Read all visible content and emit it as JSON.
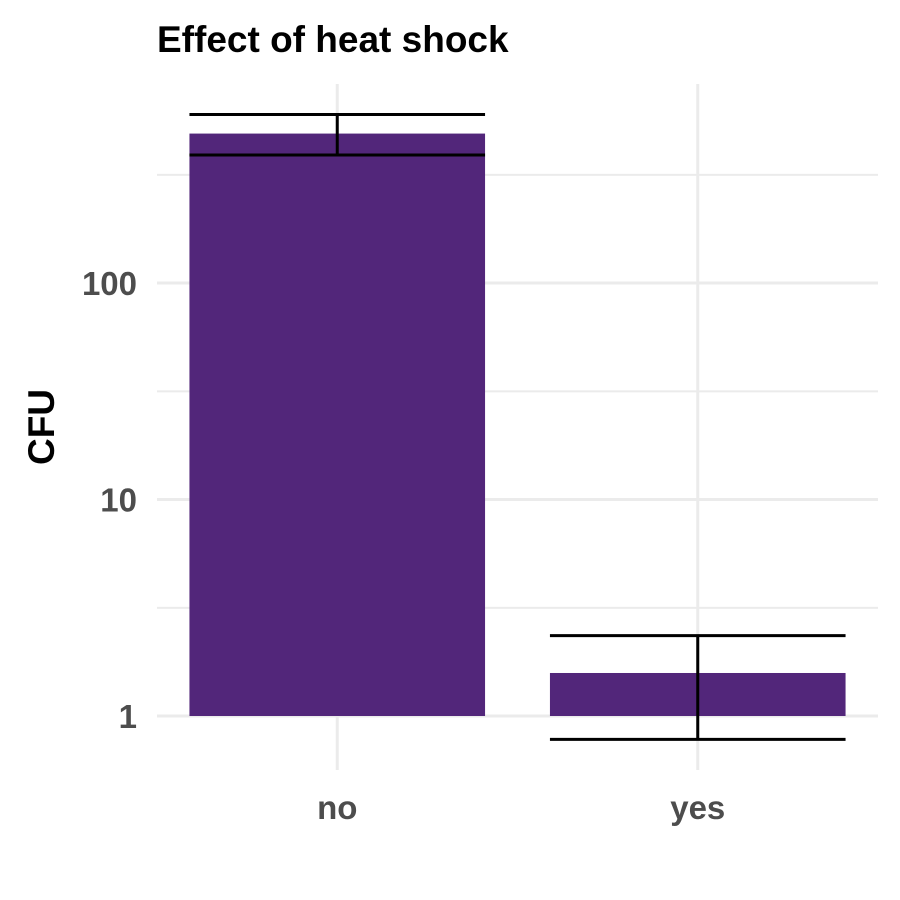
{
  "chart_data": {
    "type": "bar",
    "title": "Effect of heat shock",
    "xlabel": "",
    "ylabel": "CFU",
    "y_scale": "log10",
    "ylim": [
      0.72,
      1000
    ],
    "y_ticks": [
      1,
      10,
      100
    ],
    "y_tick_labels": [
      "1",
      "10",
      "100"
    ],
    "y_minor_ticks": [
      3.16,
      31.6,
      316
    ],
    "categories": [
      "no",
      "yes"
    ],
    "values": [
      490,
      1.58
    ],
    "error_low": [
      390,
      0.78
    ],
    "error_high": [
      600,
      2.35
    ],
    "bar_color": "#52267a",
    "error_bar_color": "#000000",
    "grid": true,
    "legend": "none"
  }
}
